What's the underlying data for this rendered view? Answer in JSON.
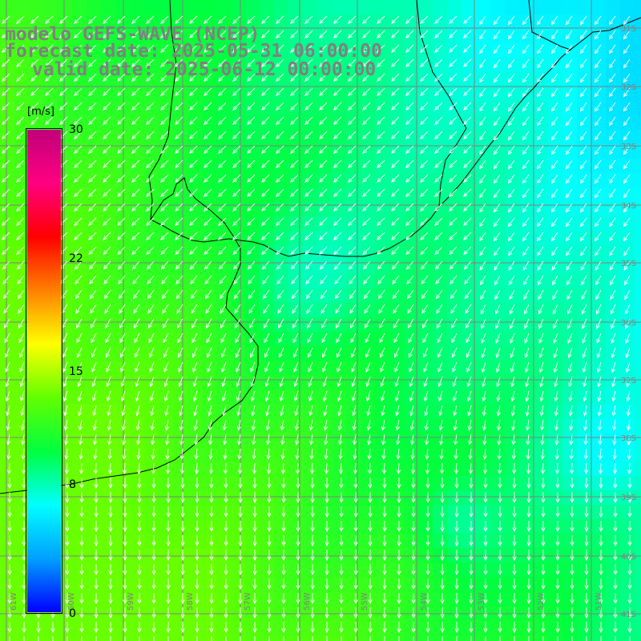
{
  "header": {
    "model_line": "modelo GEFS-WAVE (NCEP)",
    "forecast_line": "forecast date: 2025-05-31 06:00:00",
    "valid_line": "valid date: 2025-06-12 00:00:00"
  },
  "colorbar": {
    "unit": "[m/s]",
    "min": 0,
    "max": 30,
    "ticks": [
      {
        "value": 30,
        "label": "30"
      },
      {
        "value": 22,
        "label": "22"
      },
      {
        "value": 15,
        "label": "15"
      },
      {
        "value": 8,
        "label": "8"
      },
      {
        "value": 0,
        "label": "0"
      }
    ],
    "colors": [
      "#0000ff",
      "#00a0ff",
      "#00ffff",
      "#00ff40",
      "#60ff00",
      "#ffff00",
      "#ff8000",
      "#ff0000",
      "#ff0080",
      "#c0007a"
    ]
  },
  "map": {
    "region": "Uruguay / Rio de la Plata / South Brazil coast",
    "field": "wind speed and direction",
    "lat_labels": [
      "31S",
      "32S",
      "33S",
      "34S",
      "35S",
      "36S",
      "37S",
      "38S",
      "39S",
      "40S",
      "41S"
    ],
    "lon_labels": [
      "61W",
      "60W",
      "59W",
      "58W",
      "57W",
      "56W",
      "55W",
      "54W",
      "53W",
      "52W",
      "51W"
    ],
    "colors": {
      "grid": "#808080",
      "coast": "#000000",
      "arrow": "#ffffff",
      "land": "#ffffff"
    }
  }
}
